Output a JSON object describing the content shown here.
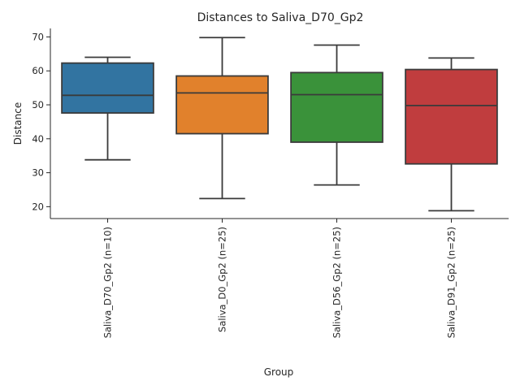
{
  "chart_data": {
    "type": "box",
    "title": "Distances to Saliva_D70_Gp2",
    "xlabel": "Group",
    "ylabel": "Distance",
    "ylim": [
      16.5,
      72.5
    ],
    "yticks": [
      20,
      30,
      40,
      50,
      60,
      70
    ],
    "grid": false,
    "legend": "none",
    "categories": [
      "Saliva_D70_Gp2 (n=10)",
      "Saliva_D0_Gp2 (n=25)",
      "Saliva_D56_Gp2 (n=25)",
      "Saliva_D91_Gp2 (n=25)"
    ],
    "boxes": [
      {
        "category": "Saliva_D70_Gp2 (n=10)",
        "whisker_low": 33.8,
        "q1": 47.6,
        "median": 52.8,
        "q3": 62.3,
        "whisker_high": 64.0,
        "color": "#3274a1"
      },
      {
        "category": "Saliva_D0_Gp2 (n=25)",
        "whisker_low": 22.4,
        "q1": 41.5,
        "median": 53.5,
        "q3": 58.5,
        "whisker_high": 69.8,
        "color": "#e1812c"
      },
      {
        "category": "Saliva_D56_Gp2 (n=25)",
        "whisker_low": 26.4,
        "q1": 39.0,
        "median": 53.0,
        "q3": 59.5,
        "whisker_high": 67.6,
        "color": "#3a923a"
      },
      {
        "category": "Saliva_D91_Gp2 (n=25)",
        "whisker_low": 18.8,
        "q1": 32.6,
        "median": 49.8,
        "q3": 60.4,
        "whisker_high": 63.8,
        "color": "#c03d3e"
      }
    ]
  }
}
